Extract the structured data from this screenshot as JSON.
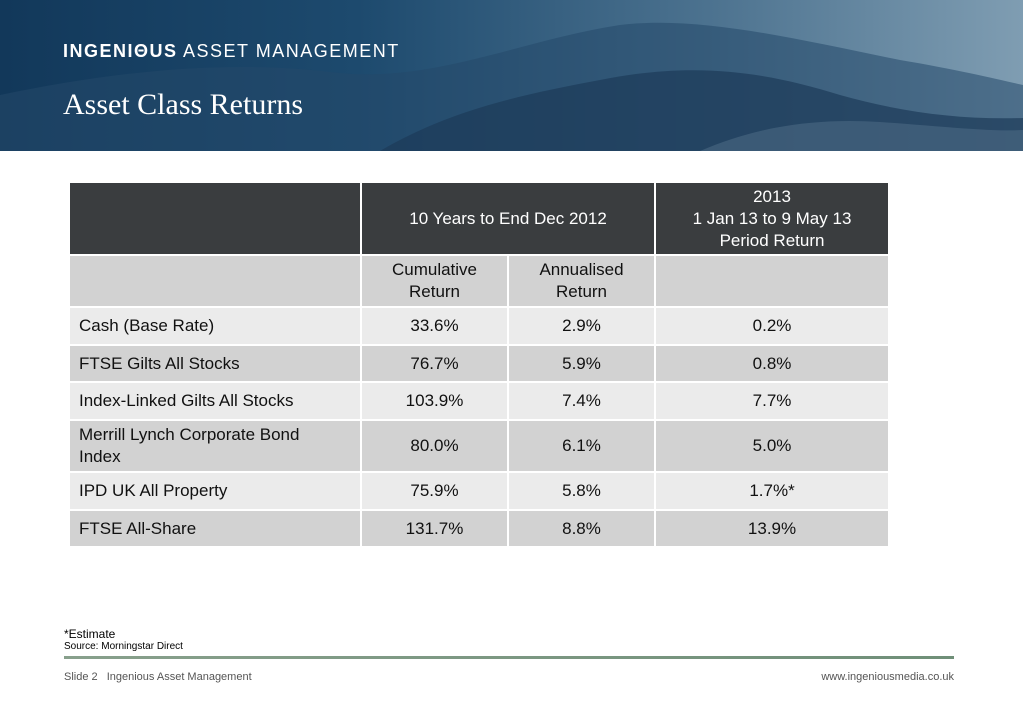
{
  "header": {
    "brand_bold": "INGENIΘUS",
    "brand_rest": "ASSET MANAGEMENT",
    "title": "Asset Class Returns"
  },
  "table": {
    "header_row1": [
      "",
      "10 Years to End Dec 2012",
      "2013\n1 Jan 13 to 9 May 13\nPeriod Return"
    ],
    "header_row2": [
      "",
      "Cumulative Return",
      "Annualised Return",
      ""
    ],
    "rows": [
      {
        "name": "Cash (Base Rate)",
        "cumulative": "33.6%",
        "annualised": "2.9%",
        "period": "0.2%"
      },
      {
        "name": "FTSE Gilts All Stocks",
        "cumulative": "76.7%",
        "annualised": "5.9%",
        "period": "0.8%"
      },
      {
        "name": "Index-Linked Gilts All Stocks",
        "cumulative": "103.9%",
        "annualised": "7.4%",
        "period": "7.7%"
      },
      {
        "name": "Merrill Lynch Corporate Bond Index",
        "cumulative": "80.0%",
        "annualised": "6.1%",
        "period": "5.0%"
      },
      {
        "name": "IPD UK All Property",
        "cumulative": "75.9%",
        "annualised": "5.8%",
        "period": "1.7%*"
      },
      {
        "name": "FTSE All-Share",
        "cumulative": "131.7%",
        "annualised": "8.8%",
        "period": "13.9%"
      }
    ]
  },
  "notes": {
    "estimate": "*Estimate",
    "source": "Source: Morningstar Direct"
  },
  "footer": {
    "slide": "Slide 2",
    "company": "Ingenious Asset Management",
    "url": "www.ingeniousmedia.co.uk"
  },
  "colors": {
    "header_dark": "#3a3d3f",
    "row_light": "#ebebeb",
    "row_mid": "#d2d2d2",
    "divider": "#7f9a85"
  }
}
